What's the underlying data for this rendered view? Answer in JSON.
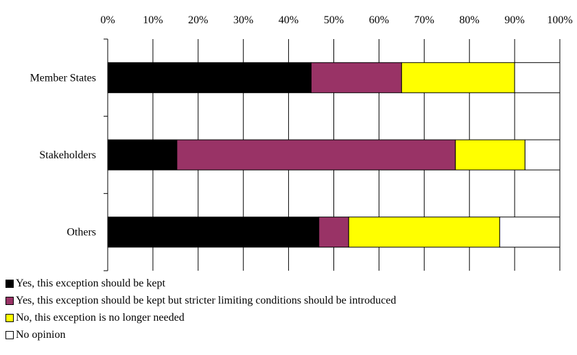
{
  "chart_data": {
    "type": "bar",
    "orientation": "horizontal",
    "stacked": true,
    "percent_scale": true,
    "categories": [
      "Member States",
      "Stakeholders",
      "Others"
    ],
    "series": [
      {
        "name": "Yes, this exception should be kept",
        "color": "#000000",
        "values": [
          45,
          15.3,
          46.7
        ]
      },
      {
        "name": "Yes, this exception should be kept but stricter limiting conditions should be introduced",
        "color": "#993366",
        "values": [
          20,
          61.6,
          6.6
        ]
      },
      {
        "name": "No, this exception is no longer needed",
        "color": "#ffff00",
        "values": [
          25,
          15.4,
          33.4
        ]
      },
      {
        "name": "No opinion",
        "color": "#ffffff",
        "values": [
          10,
          7.7,
          13.3
        ]
      }
    ],
    "x_ticks": [
      "0%",
      "10%",
      "20%",
      "30%",
      "40%",
      "50%",
      "60%",
      "70%",
      "80%",
      "90%",
      "100%"
    ],
    "xlim": [
      0,
      100
    ],
    "x_axis_position": "top",
    "grid": true,
    "legend_position": "bottom-left"
  }
}
